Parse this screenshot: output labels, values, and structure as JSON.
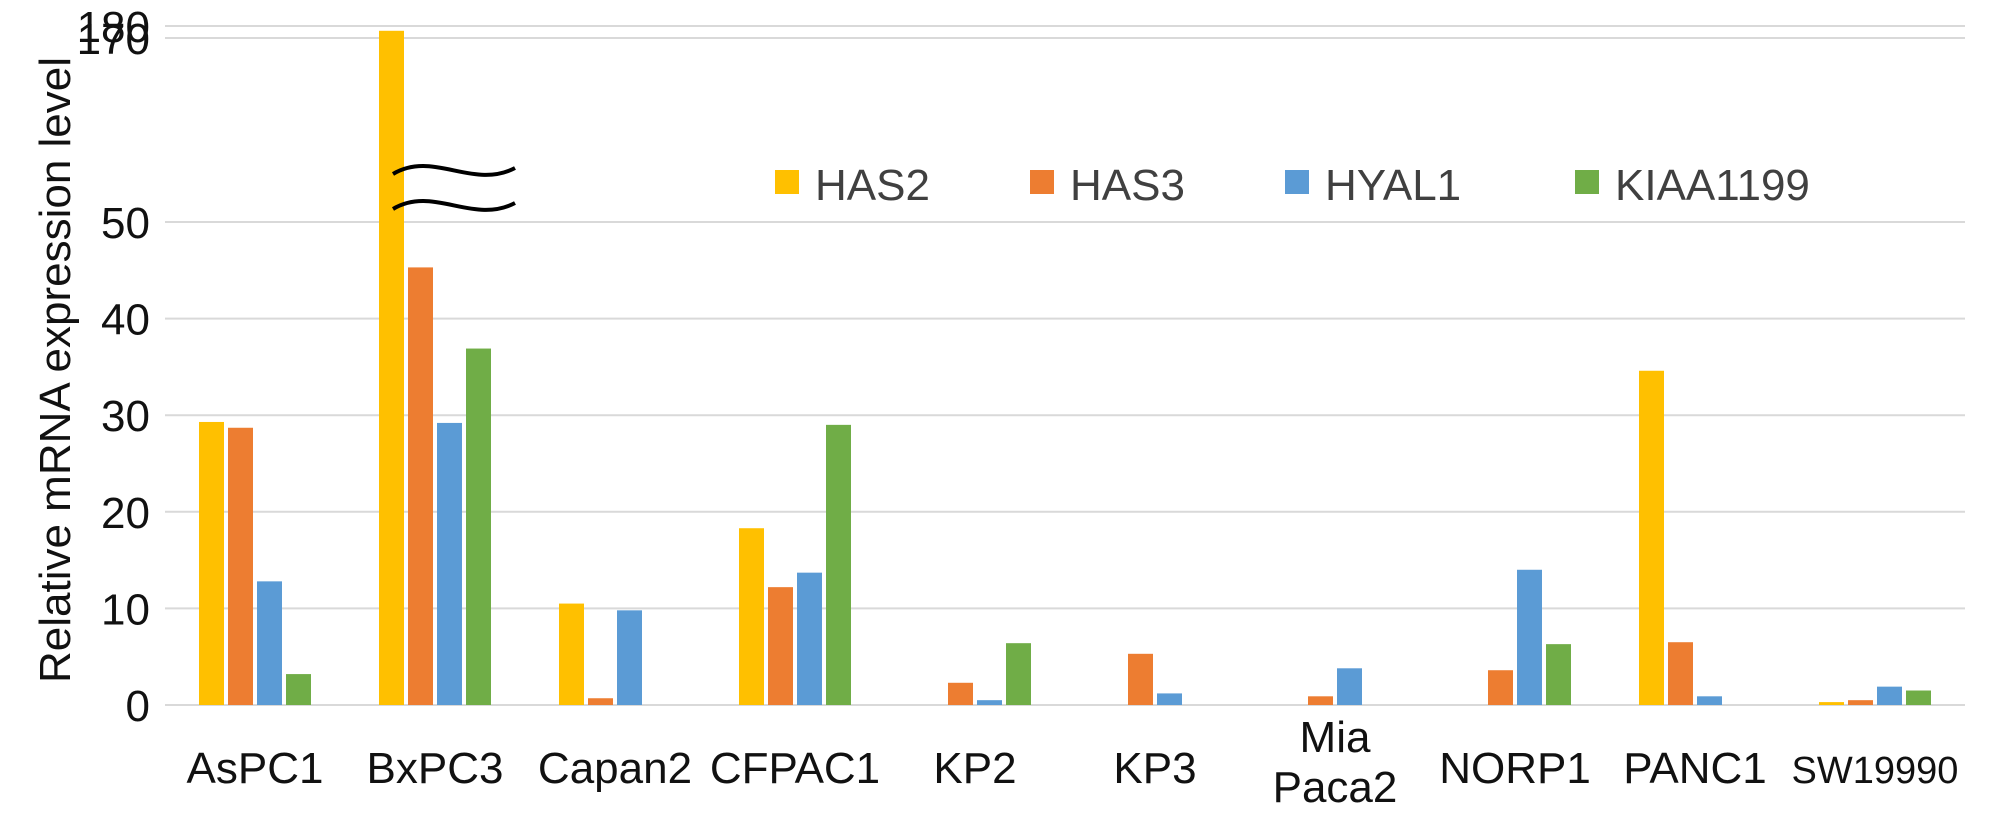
{
  "chart_data": {
    "type": "bar",
    "title": "",
    "xlabel": "",
    "ylabel": "Relative mRNA expression level",
    "categories": [
      "AsPC1",
      "BxPC3",
      "Capan2",
      "CFPAC1",
      "KP2",
      "KP3",
      "Mia Paca2",
      "NORP1",
      "PANC1",
      "SW19990"
    ],
    "category_label_lines": [
      [
        "AsPC1"
      ],
      [
        "BxPC3"
      ],
      [
        "Capan2"
      ],
      [
        "CFPAC1"
      ],
      [
        "KP2"
      ],
      [
        "KP3"
      ],
      [
        "Mia",
        "Paca2"
      ],
      [
        "NORP1"
      ],
      [
        "PANC1"
      ],
      [
        "SW19990"
      ]
    ],
    "series": [
      {
        "name": "HAS2",
        "color": "#FFC000",
        "values": [
          29.3,
          176,
          10.5,
          18.3,
          0,
          0,
          0,
          0,
          34.6,
          0.3
        ]
      },
      {
        "name": "HAS3",
        "color": "#ED7D31",
        "values": [
          28.7,
          45.3,
          0.7,
          12.2,
          2.3,
          5.3,
          0.9,
          3.6,
          6.5,
          0.5
        ]
      },
      {
        "name": "HYAL1",
        "color": "#5B9BD5",
        "values": [
          12.8,
          29.2,
          9.8,
          13.7,
          0.5,
          1.2,
          3.8,
          14,
          0.9,
          1.9
        ]
      },
      {
        "name": "KIAA1199",
        "color": "#70AD47",
        "values": [
          3.2,
          36.9,
          0,
          29,
          6.4,
          0,
          0,
          6.3,
          0,
          1.5
        ]
      }
    ],
    "ylim": [
      0,
      180
    ],
    "y_axis_break": {
      "lower_max": 50,
      "upper_min": 160,
      "upper_ticks": [
        170,
        180
      ]
    },
    "yticks": [
      0,
      10,
      20,
      30,
      40,
      50,
      170,
      180
    ],
    "grid": true,
    "legend": "top-right"
  }
}
